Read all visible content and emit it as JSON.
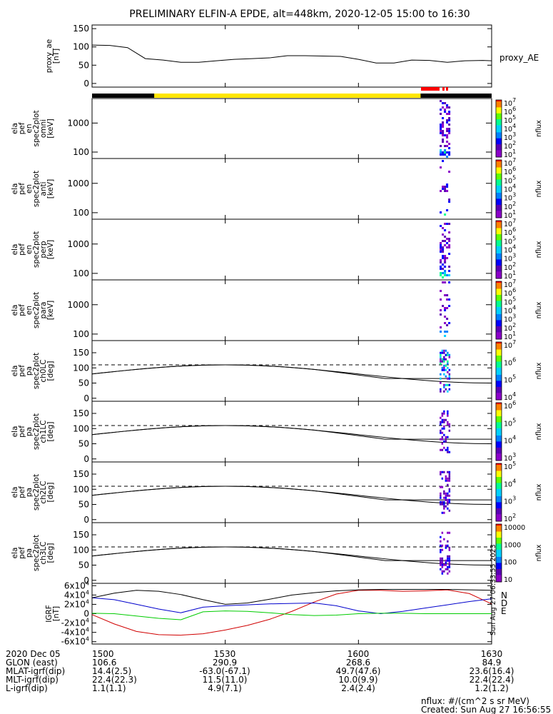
{
  "chart_data": {
    "type": "spectrogram",
    "title": "PRELIMINARY ELFIN-A EPDE, alt=448km, 2020-12-05 15:00 to 16:30",
    "time_ticks": [
      "1500",
      "1530",
      "1600",
      "1630"
    ],
    "time_range_min": [
      0,
      90
    ],
    "panels": [
      {
        "id": "proxy_ae",
        "type": "line",
        "ylabel": [
          "proxy_ae",
          "[nT]"
        ],
        "legend": "proxy_AE",
        "yticks": [
          "0",
          "50",
          "100",
          "150"
        ],
        "ylim": [
          -10,
          160
        ],
        "x_min": [
          0,
          4,
          8,
          12,
          16,
          20,
          24,
          28,
          32,
          36,
          40,
          44,
          48,
          52,
          56,
          60,
          64,
          68,
          72,
          76,
          80,
          84,
          88,
          90
        ],
        "y_nT": [
          105,
          104,
          98,
          68,
          64,
          58,
          58,
          62,
          66,
          68,
          70,
          76,
          76,
          75,
          74,
          66,
          56,
          56,
          64,
          63,
          58,
          62,
          63,
          62
        ]
      },
      {
        "id": "en_omni",
        "type": "spectrogram",
        "ylabel": [
          "ela",
          "pef",
          "en",
          "spec2plot",
          "omni",
          "[keV]"
        ],
        "yticks": [
          "100",
          "1000"
        ],
        "cbar_ticks": [
          "10^1",
          "10^2",
          "10^3",
          "10^4",
          "10^5",
          "10^6",
          "10^7"
        ],
        "cbar_label": "nflux",
        "ylog": true,
        "ylim_keV": [
          60,
          7000
        ],
        "activity_min": [
          77,
          80
        ]
      },
      {
        "id": "en_anti",
        "type": "spectrogram",
        "ylabel": [
          "ela",
          "pef",
          "en",
          "spec2plot",
          "anti",
          "[keV]"
        ],
        "yticks": [
          "100",
          "1000"
        ],
        "cbar_ticks": [
          "10^1",
          "10^2",
          "10^3",
          "10^4",
          "10^5",
          "10^6",
          "10^7"
        ],
        "cbar_label": "nflux",
        "ylog": true,
        "ylim_keV": [
          60,
          7000
        ],
        "activity_min": [
          77,
          80
        ]
      },
      {
        "id": "en_perp",
        "type": "spectrogram",
        "ylabel": [
          "ela",
          "pef",
          "en",
          "spec2plot",
          "perp",
          "[keV]"
        ],
        "yticks": [
          "100",
          "1000"
        ],
        "cbar_ticks": [
          "10^1",
          "10^2",
          "10^3",
          "10^4",
          "10^5",
          "10^6",
          "10^7"
        ],
        "cbar_label": "nflux",
        "ylog": true,
        "ylim_keV": [
          60,
          7000
        ],
        "activity_min": [
          77,
          80
        ]
      },
      {
        "id": "en_para",
        "type": "spectrogram",
        "ylabel": [
          "ela",
          "pef",
          "en",
          "spec2plot",
          "para",
          "[keV]"
        ],
        "yticks": [
          "100",
          "1000"
        ],
        "cbar_ticks": [
          "10^1",
          "10^2",
          "10^3",
          "10^4",
          "10^5",
          "10^6",
          "10^7"
        ],
        "cbar_label": "nflux",
        "ylog": true,
        "ylim_keV": [
          60,
          7000
        ],
        "activity_min": [
          77,
          80
        ]
      },
      {
        "id": "pa_ch0LC",
        "type": "spectrogram",
        "ylabel": [
          "ela",
          "pef",
          "pa",
          "spec2plot",
          "ch0LC",
          "[deg]"
        ],
        "yticks": [
          "0",
          "50",
          "100",
          "150"
        ],
        "cbar_ticks": [
          "10^4",
          "10^5",
          "10^6",
          "10^7"
        ],
        "cbar_label": "nflux",
        "ylim_deg": [
          -10,
          190
        ],
        "activity_min": [
          77,
          80
        ]
      },
      {
        "id": "pa_ch1LC",
        "type": "spectrogram",
        "ylabel": [
          "ela",
          "pef",
          "pa",
          "spec2plot",
          "ch1LC",
          "[deg]"
        ],
        "yticks": [
          "0",
          "50",
          "100",
          "150"
        ],
        "cbar_ticks": [
          "10^3",
          "10^4",
          "10^5",
          "10^6"
        ],
        "cbar_label": "nflux",
        "ylim_deg": [
          -10,
          190
        ],
        "activity_min": [
          77,
          80
        ]
      },
      {
        "id": "pa_ch2LC",
        "type": "spectrogram",
        "ylabel": [
          "ela",
          "pef",
          "pa",
          "spec2plot",
          "ch2LC",
          "[deg]"
        ],
        "yticks": [
          "0",
          "50",
          "100",
          "150"
        ],
        "cbar_ticks": [
          "10^2",
          "10^3",
          "10^4",
          "10^5"
        ],
        "cbar_label": "nflux",
        "ylim_deg": [
          -10,
          190
        ],
        "activity_min": [
          77,
          80
        ]
      },
      {
        "id": "pa_ch3LC",
        "type": "spectrogram",
        "ylabel": [
          "ela",
          "pef",
          "pa",
          "spec2plot",
          "ch3LC",
          "[deg]"
        ],
        "yticks": [
          "0",
          "50",
          "100",
          "150"
        ],
        "cbar_ticks": [
          "10",
          "100",
          "1000",
          "10000"
        ],
        "cbar_label": "nflux",
        "ylim_deg": [
          -10,
          190
        ],
        "activity_min": [
          77,
          80
        ]
      },
      {
        "id": "igrf",
        "type": "line",
        "ylabel": [
          "IGRF",
          "[nT]"
        ],
        "yticks": [
          "-6x10^4",
          "-4x10^4",
          "-2x10^4",
          "0",
          "2x10^4",
          "4x10^4",
          "6x10^4"
        ],
        "ylim": [
          -65000,
          65000
        ],
        "legend": [
          "N",
          "D",
          "E"
        ],
        "x_min": [
          0,
          5,
          10,
          15,
          20,
          25,
          30,
          35,
          40,
          45,
          50,
          55,
          60,
          65,
          70,
          75,
          80,
          85,
          90
        ],
        "series": [
          {
            "name": "N",
            "color": "#d00000",
            "values": [
              -2000,
              -22000,
              -38000,
              -45000,
              -46000,
              -43000,
              -35000,
              -25000,
              -12000,
              5000,
              25000,
              42000,
              50000,
              50000,
              48000,
              49000,
              51000,
              43000,
              21000
            ]
          },
          {
            "name": "D",
            "color": "#0000cc",
            "values": [
              34000,
              30000,
              20000,
              10000,
              2000,
              14000,
              17000,
              19000,
              21000,
              22000,
              23000,
              17000,
              6000,
              0,
              5000,
              12000,
              19000,
              26000,
              32000
            ]
          },
          {
            "name": "E",
            "color": "#00cc00",
            "values": [
              1000,
              0,
              -5000,
              -10000,
              -13000,
              4000,
              6000,
              5000,
              2000,
              -2000,
              -4000,
              -3000,
              0,
              1000,
              1000,
              0,
              0,
              0,
              0
            ]
          },
          {
            "name": "",
            "color": "#000000",
            "values": [
              34000,
              44000,
              50000,
              48000,
              41000,
              30000,
              20000,
              23000,
              31000,
              40000,
              45000,
              49000,
              51000,
              52000,
              52000,
              52000,
              52000,
              51000,
              50000
            ]
          }
        ]
      }
    ],
    "status_bar": {
      "colors": {
        "black": "#000000",
        "yellow": "#ffe600",
        "red": "#ff0000"
      },
      "yellow_span_min": [
        14,
        74
      ]
    },
    "orbit_rows": [
      {
        "label": "2020 Dec 05",
        "values": [
          "1500",
          "1530",
          "1600",
          "1630"
        ]
      },
      {
        "label": "GLON (east)",
        "values": [
          "106.6",
          "290.9",
          "268.6",
          "84.9"
        ]
      },
      {
        "label": "MLAT-igrf(dip)",
        "values": [
          "14.4(2.5)",
          "-63.0(-67.1)",
          "49.7(47.6)",
          "23.6(16.4)"
        ]
      },
      {
        "label": "MLT-igrf(dip)",
        "values": [
          "22.4(22.3)",
          "11.5(11.0)",
          "10.0(9.9)",
          "22.4(22.4)"
        ]
      },
      {
        "label": "L-igrf(dip)",
        "values": [
          "1.1(1.1)",
          "4.9(7.1)",
          "2.4(2.4)",
          "1.2(1.2)"
        ]
      }
    ],
    "units_note": "nflux: #/(cm^2 s sr MeV)",
    "created_note": "Created: Sun Aug 27 16:56:55 2023",
    "side_note": "Sun Aug 27 06:33:55 2023"
  }
}
